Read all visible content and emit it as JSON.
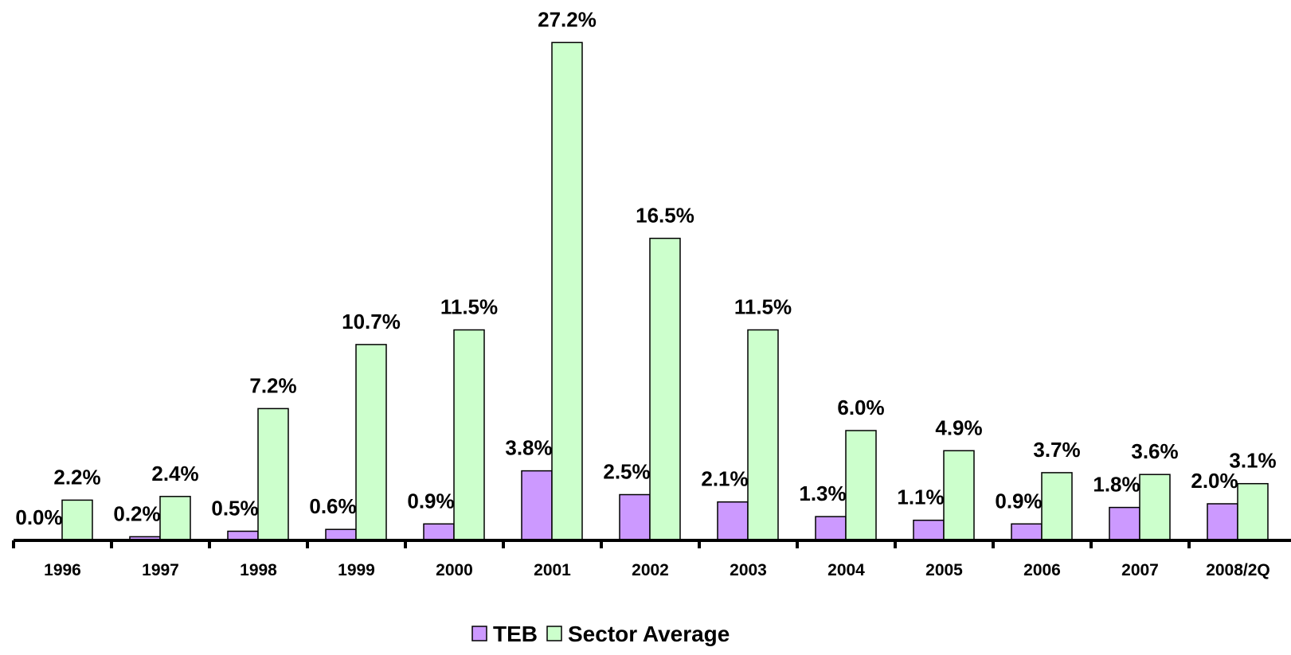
{
  "chart_data": {
    "type": "bar",
    "categories": [
      "1996",
      "1997",
      "1998",
      "1999",
      "2000",
      "2001",
      "2002",
      "2003",
      "2004",
      "2005",
      "2006",
      "2007",
      "2008/2Q"
    ],
    "series": [
      {
        "name": "TEB",
        "color": "#cc99ff",
        "values": [
          0.0,
          0.2,
          0.5,
          0.6,
          0.9,
          3.8,
          2.5,
          2.1,
          1.3,
          1.1,
          0.9,
          1.8,
          2.0
        ],
        "value_labels": [
          "0.0%",
          "0.2%",
          "0.5%",
          "0.6%",
          "0.9%",
          "3.8%",
          "2.5%",
          "2.1%",
          "1.3%",
          "1.1%",
          "0.9%",
          "1.8%",
          "2.0%"
        ]
      },
      {
        "name": "Sector Average",
        "color": "#ccffcc",
        "values": [
          2.2,
          2.4,
          7.2,
          10.7,
          11.5,
          27.2,
          16.5,
          11.5,
          6.0,
          4.9,
          3.7,
          3.6,
          3.1
        ],
        "value_labels": [
          "2.2%",
          "2.4%",
          "7.2%",
          "10.7%",
          "11.5%",
          "27.2%",
          "16.5%",
          "11.5%",
          "6.0%",
          "4.9%",
          "3.7%",
          "3.6%",
          "3.1%"
        ]
      }
    ],
    "legend": "bottom"
  }
}
